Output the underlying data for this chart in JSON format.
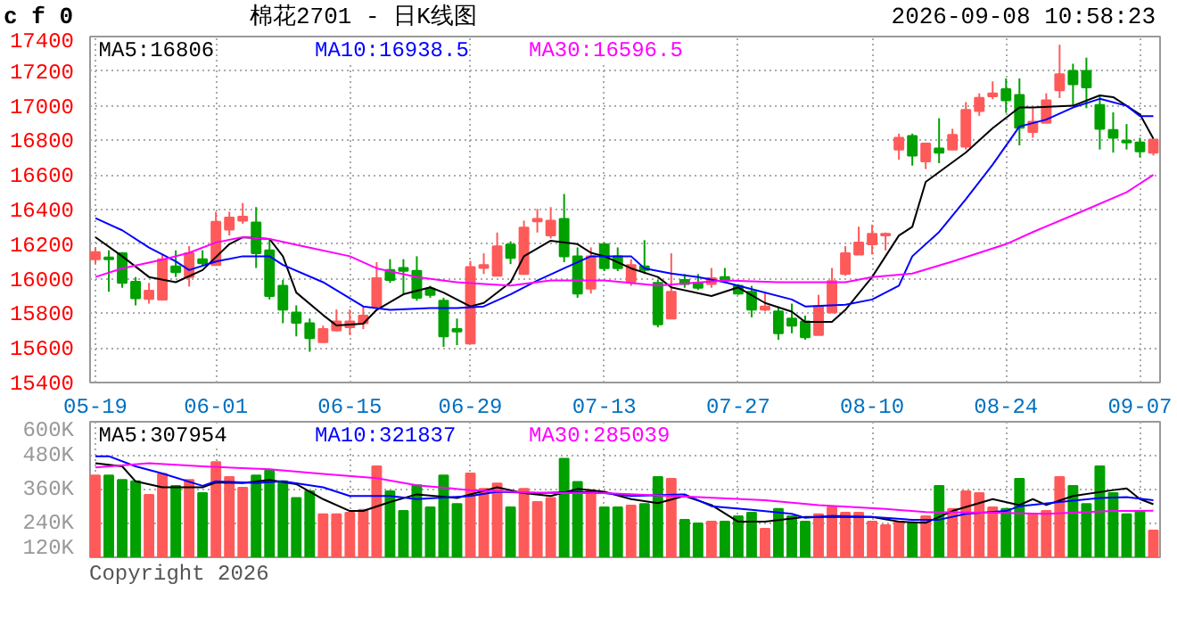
{
  "chart_data": [
    {
      "type": "candlestick",
      "title": "棉花2701 - 日K线图",
      "annotations": [
        "c f 0",
        "2026-09-08 10:58:23"
      ],
      "categories": [
        "05-19",
        null,
        null,
        null,
        null,
        null,
        null,
        null,
        null,
        "06-01",
        null,
        null,
        null,
        null,
        null,
        null,
        null,
        null,
        null,
        "06-15",
        null,
        null,
        null,
        null,
        null,
        null,
        null,
        null,
        "06-29",
        null,
        null,
        null,
        null,
        null,
        null,
        null,
        null,
        null,
        "07-13",
        null,
        null,
        null,
        null,
        null,
        null,
        null,
        null,
        null,
        "07-27",
        null,
        null,
        null,
        null,
        null,
        null,
        null,
        null,
        null,
        "08-10",
        null,
        null,
        null,
        null,
        null,
        null,
        null,
        null,
        null,
        "08-24",
        null,
        null,
        null,
        null,
        null,
        null,
        null,
        null,
        null,
        "09-07",
        null
      ],
      "ohlc": [
        [
          16113,
          16181,
          16085,
          16154
        ],
        [
          16123,
          16164,
          15925,
          16113
        ],
        [
          16147,
          16154,
          15948,
          15976
        ],
        [
          15983,
          16010,
          15846,
          15887
        ],
        [
          15883,
          15976,
          15856,
          15931
        ],
        [
          15880,
          16140,
          15873,
          16113
        ],
        [
          16072,
          16164,
          16010,
          16038
        ],
        [
          16010,
          16188,
          15955,
          16147
        ],
        [
          16113,
          16164,
          16079,
          16089
        ],
        [
          16079,
          16387,
          16079,
          16329
        ],
        [
          16284,
          16387,
          16250,
          16353
        ],
        [
          16335,
          16438,
          16318,
          16359
        ],
        [
          16325,
          16414,
          16062,
          16147
        ],
        [
          16164,
          16233,
          15880,
          15900
        ],
        [
          15959,
          15993,
          15743,
          15822
        ],
        [
          15805,
          15846,
          15667,
          15746
        ],
        [
          15743,
          15770,
          15578,
          15657
        ],
        [
          15633,
          15729,
          15633,
          15709
        ],
        [
          15702,
          15822,
          15695,
          15753
        ],
        [
          15719,
          15822,
          15674,
          15753
        ],
        [
          15743,
          15839,
          15709,
          15787
        ],
        [
          15839,
          16096,
          15832,
          16003
        ],
        [
          16051,
          16113,
          15976,
          15993
        ],
        [
          16062,
          16113,
          15907,
          16045
        ],
        [
          16045,
          16130,
          15873,
          15890
        ],
        [
          15942,
          15959,
          15890,
          15907
        ],
        [
          15873,
          15890,
          15606,
          15667
        ],
        [
          15709,
          15770,
          15616,
          15695
        ],
        [
          15626,
          16103,
          15626,
          16068
        ],
        [
          16062,
          16147,
          16027,
          16079
        ],
        [
          16017,
          16267,
          16017,
          16188
        ],
        [
          16198,
          16216,
          16085,
          16120
        ],
        [
          16027,
          16336,
          16027,
          16295
        ],
        [
          16332,
          16404,
          16267,
          16346
        ],
        [
          16250,
          16414,
          16233,
          16336
        ],
        [
          16346,
          16490,
          16096,
          16130
        ],
        [
          16130,
          16181,
          15890,
          15914
        ],
        [
          15942,
          16181,
          15914,
          16130
        ],
        [
          16199,
          16209,
          16044,
          16061
        ],
        [
          16130,
          16181,
          16044,
          16061
        ],
        [
          15983,
          16113,
          15959,
          16079
        ],
        [
          16072,
          16223,
          16027,
          16051
        ],
        [
          15976,
          15993,
          15719,
          15736
        ],
        [
          15770,
          16147,
          15770,
          15924
        ],
        [
          15993,
          16027,
          15948,
          15969
        ],
        [
          15976,
          16027,
          15935,
          15948
        ],
        [
          15969,
          16062,
          15948,
          16003
        ],
        [
          16010,
          16062,
          15976,
          15990
        ],
        [
          15959,
          15969,
          15907,
          15914
        ],
        [
          15924,
          15959,
          15777,
          15822
        ],
        [
          15822,
          15924,
          15811,
          15839
        ],
        [
          15811,
          15839,
          15647,
          15685
        ],
        [
          15770,
          15856,
          15685,
          15729
        ],
        [
          15753,
          15787,
          15647,
          15661
        ],
        [
          15674,
          15907,
          15674,
          15839
        ],
        [
          15805,
          16062,
          15805,
          15986
        ],
        [
          16027,
          16188,
          16017,
          16147
        ],
        [
          16140,
          16301,
          16140,
          16209
        ],
        [
          16199,
          16312,
          16140,
          16260
        ],
        [
          16250,
          16267,
          16164,
          16260
        ],
        [
          16747,
          16839,
          16688,
          16815
        ],
        [
          16825,
          16839,
          16654,
          16712
        ],
        [
          16678,
          16781,
          16634,
          16781
        ],
        [
          16753,
          16928,
          16668,
          16729
        ],
        [
          16747,
          16867,
          16747,
          16832
        ],
        [
          16764,
          17021,
          16747,
          16976
        ],
        [
          16969,
          17072,
          16942,
          17045
        ],
        [
          17055,
          17141,
          17038,
          17072
        ],
        [
          17096,
          17158,
          16959,
          17031
        ],
        [
          17062,
          17158,
          16771,
          16873
        ],
        [
          16849,
          16986,
          16815,
          16908
        ],
        [
          16901,
          17072,
          16901,
          17031
        ],
        [
          17089,
          17353,
          17045,
          17182
        ],
        [
          17202,
          17243,
          17004,
          17124
        ],
        [
          17202,
          17278,
          16986,
          17106
        ],
        [
          17004,
          17055,
          16747,
          16867
        ],
        [
          16860,
          16962,
          16729,
          16815
        ],
        [
          16798,
          16894,
          16747,
          16788
        ],
        [
          16788,
          16815,
          16702,
          16736
        ],
        [
          16729,
          16805,
          16712,
          16805
        ]
      ],
      "series": [
        {
          "type": "line",
          "name": "MA5:16806",
          "color": "#000000",
          "values": [
            16240,
            null,
            16130,
            null,
            16010,
            null,
            15980,
            null,
            16050,
            null,
            16200,
            16240,
            null,
            16230,
            16130,
            15920,
            null,
            15790,
            15730,
            null,
            15740,
            15820,
            null,
            15910,
            null,
            15950,
            15920,
            null,
            15840,
            15860,
            null,
            15980,
            16130,
            null,
            16220,
            null,
            16200,
            16150,
            16130,
            null,
            16060,
            null,
            16010,
            15950,
            null,
            null,
            15900,
            null,
            15950,
            null,
            15860,
            null,
            15810,
            15750,
            null,
            15750,
            15820,
            null,
            16010,
            null,
            16250,
            16300,
            16560,
            null,
            null,
            16730,
            null,
            16870,
            null,
            16990,
            16990,
            null,
            null,
            17000,
            null,
            17060,
            17050,
            null,
            16950,
            16810
          ]
        },
        {
          "type": "line",
          "name": "MA10:16938.5",
          "color": "#0000ff",
          "values": [
            16350,
            null,
            16280,
            null,
            16180,
            null,
            16100,
            16050,
            null,
            16100,
            null,
            16130,
            null,
            16130,
            16080,
            null,
            null,
            15980,
            null,
            null,
            15840,
            null,
            15820,
            null,
            null,
            15830,
            null,
            15830,
            null,
            15840,
            null,
            15910,
            null,
            15990,
            null,
            16060,
            null,
            16130,
            null,
            null,
            16130,
            16060,
            null,
            16030,
            null,
            16010,
            null,
            15980,
            null,
            15940,
            null,
            null,
            15880,
            15840,
            null,
            null,
            15850,
            null,
            15880,
            null,
            15960,
            16130,
            null,
            16270,
            null,
            16460,
            null,
            16660,
            null,
            16880,
            null,
            16920,
            null,
            16990,
            null,
            17040,
            null,
            17000,
            16940,
            16940
          ]
        },
        {
          "type": "line",
          "name": "MA30:16596.5",
          "color": "#ff00ff",
          "values": [
            16010,
            null,
            16060,
            null,
            null,
            16110,
            null,
            16150,
            null,
            16210,
            null,
            16240,
            null,
            16230,
            null,
            null,
            16180,
            null,
            null,
            16130,
            null,
            16060,
            null,
            null,
            16010,
            null,
            null,
            15980,
            null,
            15970,
            null,
            15960,
            null,
            null,
            15990,
            null,
            null,
            15990,
            15990,
            null,
            null,
            null,
            15960,
            null,
            null,
            null,
            null,
            15990,
            null,
            null,
            null,
            15980,
            null,
            null,
            null,
            null,
            15980,
            null,
            16010,
            null,
            null,
            16030,
            null,
            null,
            16100,
            null,
            null,
            null,
            16200,
            null,
            16270,
            null,
            null,
            null,
            16400,
            null,
            null,
            16500,
            null,
            16600
          ]
        }
      ],
      "ylim": [
        15400,
        17400
      ],
      "yticks": [
        15400,
        15600,
        15800,
        16000,
        16200,
        16400,
        16600,
        16800,
        17000,
        17200,
        17400
      ],
      "grid": true,
      "legend": "top"
    },
    {
      "type": "bar",
      "annotations": [
        "Copyright 2026"
      ],
      "tick_labels": "y",
      "categories": [
        null,
        null,
        null,
        null,
        null,
        null,
        null,
        null,
        null,
        null,
        null,
        null,
        null,
        null,
        null,
        null,
        null,
        null,
        null,
        null,
        null,
        null,
        null,
        null,
        null,
        null,
        null,
        null,
        null,
        null,
        null,
        null,
        null,
        null,
        null,
        null,
        null,
        null,
        null,
        null,
        null,
        null,
        null,
        null,
        null,
        null,
        null,
        null,
        null,
        null,
        null,
        null,
        null,
        null,
        null,
        null,
        null,
        null,
        null,
        null,
        null,
        null,
        null,
        null,
        null,
        null,
        null,
        null,
        null,
        null,
        null,
        null,
        null,
        null,
        null,
        null,
        null,
        null,
        null,
        null
      ],
      "values": [
        410000,
        410000,
        394000,
        389000,
        341000,
        415000,
        373000,
        394000,
        347000,
        457000,
        404000,
        366000,
        410000,
        427000,
        389000,
        330000,
        354000,
        272000,
        272000,
        278000,
        288000,
        442000,
        354000,
        284000,
        375000,
        297000,
        410000,
        309000,
        417000,
        362000,
        381000,
        297000,
        362000,
        316000,
        330000,
        469000,
        387000,
        358000,
        297000,
        297000,
        303000,
        309000,
        404000,
        398000,
        253000,
        240000,
        246000,
        246000,
        265000,
        278000,
        221000,
        291000,
        265000,
        246000,
        272000,
        297000,
        278000,
        278000,
        246000,
        234000,
        246000,
        240000,
        265000,
        373000,
        291000,
        354000,
        347000,
        297000,
        291000,
        398000,
        272000,
        284000,
        404000,
        373000,
        309000,
        442000,
        347000,
        272000,
        284000,
        215000
      ],
      "colors": [
        "#ff5a5a",
        "#00a000",
        "#00a000",
        "#00a000",
        "#ff5a5a",
        "#ff5a5a",
        "#00a000",
        "#ff5a5a",
        "#00a000",
        "#ff5a5a",
        "#ff5a5a",
        "#ff5a5a",
        "#00a000",
        "#00a000",
        "#00a000",
        "#00a000",
        "#00a000",
        "#ff5a5a",
        "#ff5a5a",
        "#ff5a5a",
        "#ff5a5a",
        "#ff5a5a",
        "#00a000",
        "#00a000",
        "#00a000",
        "#00a000",
        "#00a000",
        "#00a000",
        "#ff5a5a",
        "#ff5a5a",
        "#ff5a5a",
        "#00a000",
        "#ff5a5a",
        "#ff5a5a",
        "#ff5a5a",
        "#00a000",
        "#00a000",
        "#ff5a5a",
        "#00a000",
        "#00a000",
        "#ff5a5a",
        "#00a000",
        "#00a000",
        "#ff5a5a",
        "#00a000",
        "#00a000",
        "#ff5a5a",
        "#00a000",
        "#00a000",
        "#00a000",
        "#ff5a5a",
        "#00a000",
        "#00a000",
        "#00a000",
        "#ff5a5a",
        "#ff5a5a",
        "#ff5a5a",
        "#ff5a5a",
        "#ff5a5a",
        "#ff5a5a",
        "#ff5a5a",
        "#00a000",
        "#ff5a5a",
        "#00a000",
        "#ff5a5a",
        "#ff5a5a",
        "#ff5a5a",
        "#ff5a5a",
        "#00a000",
        "#00a000",
        "#ff5a5a",
        "#ff5a5a",
        "#ff5a5a",
        "#00a000",
        "#00a000",
        "#00a000",
        "#00a000",
        "#00a000",
        "#00a000",
        "#ff5a5a"
      ],
      "series": [
        {
          "type": "line",
          "name": "MA5:307954",
          "color": "#000000",
          "values": [
            453000,
            null,
            442000,
            389000,
            null,
            368000,
            null,
            null,
            368000,
            385000,
            null,
            383000,
            null,
            394000,
            null,
            379000,
            null,
            326000,
            null,
            284000,
            284000,
            null,
            316000,
            null,
            343000,
            null,
            null,
            330000,
            null,
            null,
            368000,
            null,
            347000,
            null,
            337000,
            null,
            362000,
            null,
            352000,
            null,
            326000,
            null,
            312000,
            null,
            337000,
            null,
            305000,
            null,
            246000,
            null,
            246000,
            null,
            null,
            263000,
            null,
            263000,
            null,
            null,
            263000,
            null,
            246000,
            null,
            242000,
            null,
            284000,
            null,
            null,
            326000,
            null,
            305000,
            326000,
            305000,
            null,
            337000,
            null,
            null,
            358000,
            364000,
            326000,
            308000
          ]
        },
        {
          "type": "line",
          "name": "MA10:321837",
          "color": "#0000ff",
          "values": [
            478000,
            478000,
            null,
            442000,
            null,
            417000,
            null,
            null,
            373000,
            389000,
            null,
            null,
            383000,
            null,
            389000,
            null,
            null,
            368000,
            null,
            337000,
            null,
            null,
            337000,
            null,
            326000,
            null,
            null,
            null,
            337000,
            null,
            352000,
            null,
            null,
            347000,
            null,
            null,
            352000,
            null,
            347000,
            null,
            337000,
            null,
            null,
            null,
            343000,
            null,
            301000,
            null,
            null,
            288000,
            null,
            null,
            274000,
            260000,
            null,
            267000,
            null,
            null,
            263000,
            null,
            null,
            253000,
            null,
            253000,
            null,
            274000,
            null,
            null,
            284000,
            301000,
            null,
            null,
            316000,
            null,
            null,
            330000,
            null,
            333000,
            null,
            322000
          ]
        },
        {
          "type": "line",
          "name": "MA30:285039",
          "color": "#ff00ff",
          "values": [
            438000,
            null,
            null,
            null,
            453000,
            null,
            null,
            null,
            442000,
            null,
            null,
            null,
            null,
            432000,
            null,
            null,
            null,
            415000,
            null,
            null,
            null,
            400000,
            null,
            null,
            375000,
            null,
            null,
            null,
            358000,
            null,
            null,
            352000,
            null,
            null,
            347000,
            null,
            null,
            null,
            347000,
            null,
            null,
            null,
            null,
            null,
            null,
            333000,
            null,
            null,
            null,
            null,
            322000,
            null,
            null,
            null,
            305000,
            null,
            null,
            null,
            null,
            291000,
            null,
            null,
            280000,
            null,
            null,
            null,
            null,
            278000,
            null,
            null,
            null,
            274000,
            null,
            null,
            null,
            null,
            284000,
            null,
            null,
            285000
          ]
        }
      ],
      "ylim": [
        120000,
        600000
      ],
      "yticks": [
        {
          "value": 120000,
          "label": "120K"
        },
        {
          "value": 240000,
          "label": "240K"
        },
        {
          "value": 360000,
          "label": "360K"
        },
        {
          "value": 480000,
          "label": "480K"
        },
        {
          "value": 600000,
          "label": "600K"
        }
      ],
      "grid": true,
      "legend": "top"
    }
  ]
}
